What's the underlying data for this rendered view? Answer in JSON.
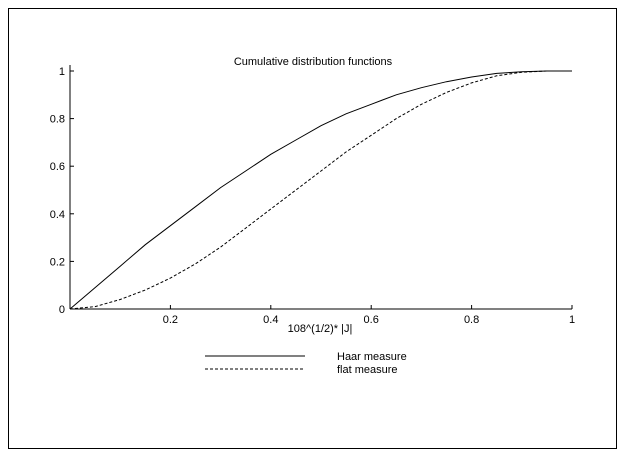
{
  "chart_data": {
    "type": "line",
    "title": "Cumulative distribution functions",
    "xlabel": "108^(1/2)* |J|",
    "ylabel": "",
    "xlim": [
      0,
      1
    ],
    "ylim": [
      0,
      1
    ],
    "grid": false,
    "legend_position": "bottom-center",
    "xticks": [
      "0.2",
      "0.4",
      "0.6",
      "0.8",
      "1"
    ],
    "yticks": [
      "0",
      "0.2",
      "0.4",
      "0.6",
      "0.8",
      "1"
    ],
    "x": [
      0,
      0.05,
      0.1,
      0.15,
      0.2,
      0.25,
      0.3,
      0.35,
      0.4,
      0.45,
      0.5,
      0.55,
      0.6,
      0.65,
      0.7,
      0.75,
      0.8,
      0.85,
      0.9,
      0.95,
      1
    ],
    "series": [
      {
        "name": "Haar measure",
        "style": "solid",
        "color": "#000000",
        "values": [
          0,
          0.09,
          0.18,
          0.27,
          0.35,
          0.43,
          0.51,
          0.58,
          0.65,
          0.71,
          0.77,
          0.82,
          0.86,
          0.9,
          0.93,
          0.955,
          0.975,
          0.99,
          0.997,
          1.0,
          1.0
        ]
      },
      {
        "name": "flat measure",
        "style": "dashed",
        "color": "#000000",
        "values": [
          0,
          0.01,
          0.04,
          0.08,
          0.13,
          0.19,
          0.26,
          0.34,
          0.42,
          0.5,
          0.58,
          0.66,
          0.73,
          0.8,
          0.86,
          0.91,
          0.95,
          0.98,
          0.995,
          1.0,
          1.0
        ]
      }
    ]
  }
}
